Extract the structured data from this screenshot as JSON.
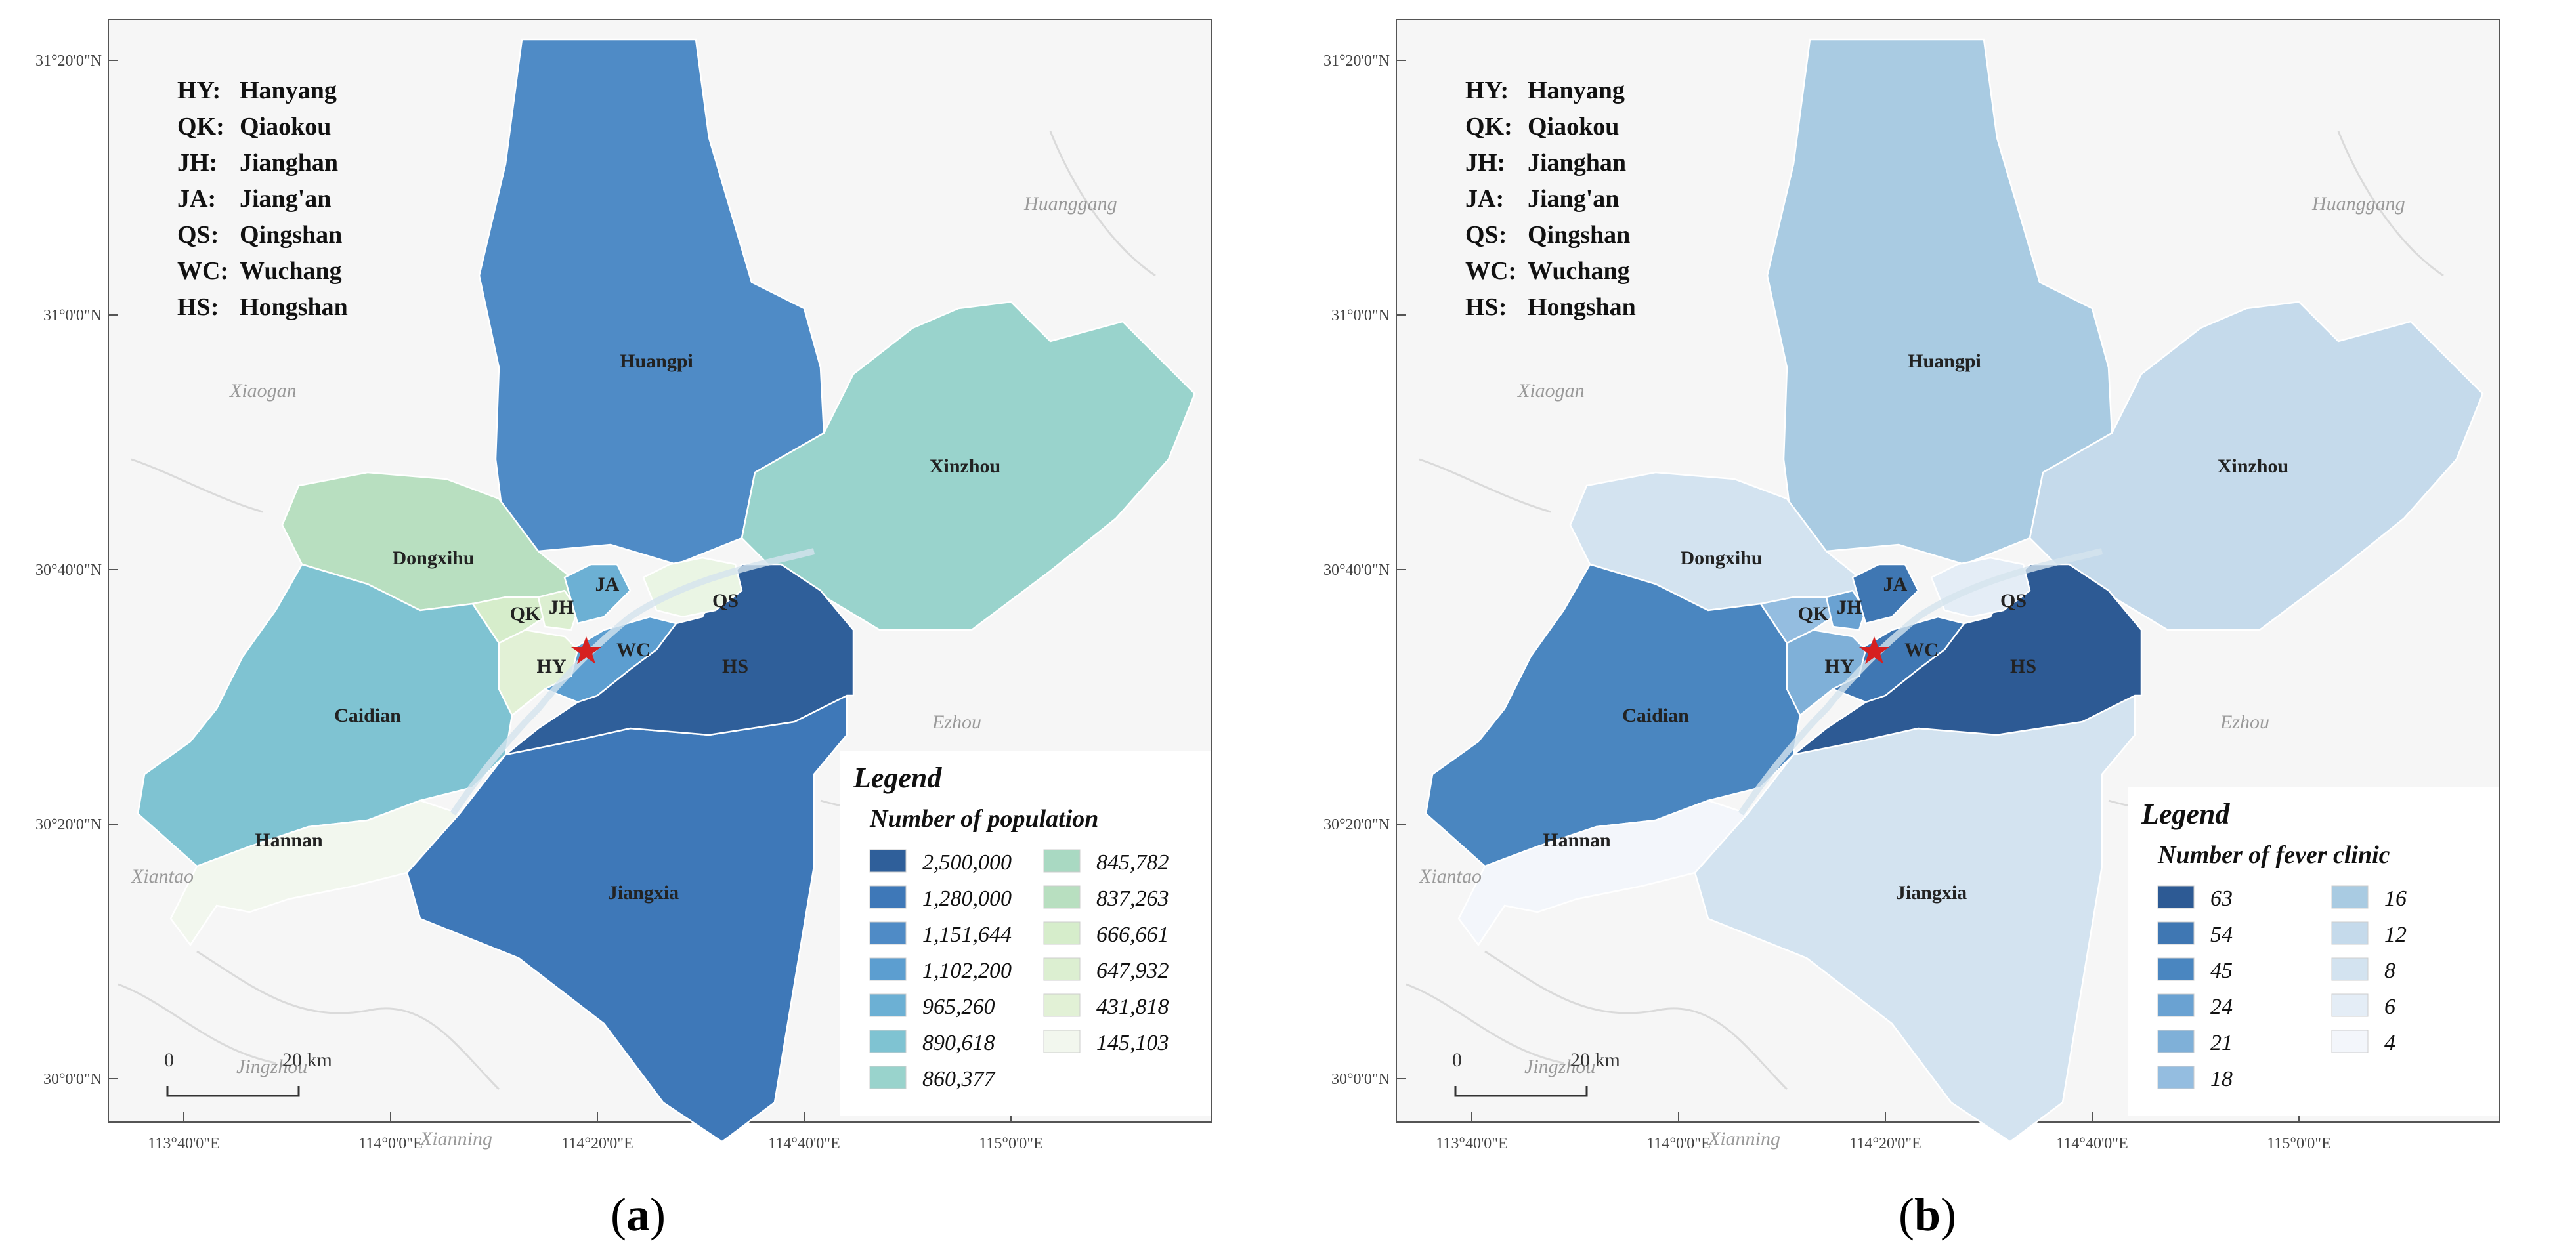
{
  "panels": [
    {
      "id": "a",
      "caption_open": "(",
      "caption_letter": "a",
      "caption_close": ")",
      "abbreviations": [
        {
          "abbr": "HY:",
          "name": "Hanyang"
        },
        {
          "abbr": "QK:",
          "name": "Qiaokou"
        },
        {
          "abbr": "JH:",
          "name": "Jianghan"
        },
        {
          "abbr": "JA:",
          "name": "Jiang'an"
        },
        {
          "abbr": "QS:",
          "name": "Qingshan"
        },
        {
          "abbr": "WC:",
          "name": "Wuchang"
        },
        {
          "abbr": "HS:",
          "name": "Hongshan"
        }
      ],
      "lat_labels": [
        "31°20'0\"N",
        "31°0'0\"N",
        "30°40'0\"N",
        "30°20'0\"N",
        "30°0'0\"N"
      ],
      "lon_labels": [
        "113°40'0\"E",
        "114°0'0\"E",
        "114°20'0\"E",
        "114°40'0\"E",
        "115°0'0\"E"
      ],
      "background_places": [
        "Xiaogan",
        "Huanggang",
        "Ezhou",
        "Xiantao",
        "Jingzhou",
        "Xianning"
      ],
      "district_labels": [
        "Huangpi",
        "Xinzhou",
        "Dongxihu",
        "Caidian",
        "Hannan",
        "Jiangxia",
        "JA",
        "QK",
        "JH",
        "QS",
        "WC",
        "HY",
        "HS"
      ],
      "district_colors": {
        "Huangpi": "#4f8bc6",
        "Xinzhou": "#99d3cc",
        "Dongxihu": "#b8dfc0",
        "Caidian": "#7fc3d2",
        "Hannan": "#f2f7ee",
        "Jiangxia": "#3e78b8",
        "Hongshan": "#2f5f9a",
        "Wuchang": "#5c9ed0",
        "Hanyang": "#e2f1d6",
        "Qiaokou": "#d6edcb",
        "Jianghan": "#dcefd1",
        "Jiangan": "#6cb0d4",
        "Qingshan": "#eaf5e4"
      },
      "legend": {
        "title": "Legend",
        "subtitle": "Number of population",
        "items": [
          {
            "value": "2,500,000",
            "color": "#2f5f9a"
          },
          {
            "value": "1,280,000",
            "color": "#3e78b8"
          },
          {
            "value": "1,151,644",
            "color": "#4f8bc6"
          },
          {
            "value": "1,102,200",
            "color": "#5c9ed0"
          },
          {
            "value": "965,260",
            "color": "#6cb0d4"
          },
          {
            "value": "890,618",
            "color": "#7fc3d2"
          },
          {
            "value": "860,377",
            "color": "#99d3cc"
          },
          {
            "value": "845,782",
            "color": "#a9d9c2"
          },
          {
            "value": "837,263",
            "color": "#b8dfc0"
          },
          {
            "value": "666,661",
            "color": "#d6edcb"
          },
          {
            "value": "647,932",
            "color": "#dcefd1"
          },
          {
            "value": "431,818",
            "color": "#e2f1d6"
          },
          {
            "value": "145,103",
            "color": "#f2f7ee"
          }
        ]
      },
      "scale": {
        "zero": "0",
        "end": "20 km"
      }
    },
    {
      "id": "b",
      "caption_open": "(",
      "caption_letter": "b",
      "caption_close": ")",
      "abbreviations": [
        {
          "abbr": "HY:",
          "name": "Hanyang"
        },
        {
          "abbr": "QK:",
          "name": "Qiaokou"
        },
        {
          "abbr": "JH:",
          "name": "Jianghan"
        },
        {
          "abbr": "JA:",
          "name": "Jiang'an"
        },
        {
          "abbr": "QS:",
          "name": "Qingshan"
        },
        {
          "abbr": "WC:",
          "name": "Wuchang"
        },
        {
          "abbr": "HS:",
          "name": "Hongshan"
        }
      ],
      "lat_labels": [
        "31°20'0\"N",
        "31°0'0\"N",
        "30°40'0\"N",
        "30°20'0\"N",
        "30°0'0\"N"
      ],
      "lon_labels": [
        "113°40'0\"E",
        "114°0'0\"E",
        "114°20'0\"E",
        "114°40'0\"E",
        "115°0'0\"E"
      ],
      "background_places": [
        "Xiaogan",
        "Huanggang",
        "Ezhou",
        "Xiantao",
        "Jingzhou",
        "Xianning"
      ],
      "district_labels": [
        "Huangpi",
        "Xinzhou",
        "Dongxihu",
        "Caidian",
        "Hannan",
        "Jiangxia",
        "JA",
        "QK",
        "JH",
        "QS",
        "WC",
        "HY",
        "HS"
      ],
      "district_colors": {
        "Huangpi": "#a9cbe2",
        "Xinzhou": "#c5daeb",
        "Dongxihu": "#d3e3f0",
        "Caidian": "#4a86c0",
        "Hannan": "#f3f6fb",
        "Jiangxia": "#d3e3f0",
        "Hongshan": "#2d5a94",
        "Wuchang": "#3f77b3",
        "Hanyang": "#7fb0d8",
        "Qiaokou": "#94bde0",
        "Jianghan": "#6aa2d2",
        "Jiangan": "#3f77b3",
        "Qingshan": "#e4edf6"
      },
      "legend": {
        "title": "Legend",
        "subtitle": "Number of fever clinic",
        "items": [
          {
            "value": "63",
            "color": "#2d5a94"
          },
          {
            "value": "54",
            "color": "#3f77b3"
          },
          {
            "value": "45",
            "color": "#4a86c0"
          },
          {
            "value": "24",
            "color": "#6aa2d2"
          },
          {
            "value": "21",
            "color": "#7fb0d8"
          },
          {
            "value": "18",
            "color": "#94bde0"
          },
          {
            "value": "16",
            "color": "#a9cbe2"
          },
          {
            "value": "12",
            "color": "#c5daeb"
          },
          {
            "value": "8",
            "color": "#d3e3f0"
          },
          {
            "value": "6",
            "color": "#e4edf6"
          },
          {
            "value": "4",
            "color": "#f3f6fb"
          }
        ]
      },
      "scale": {
        "zero": "0",
        "end": "20 km"
      }
    }
  ]
}
